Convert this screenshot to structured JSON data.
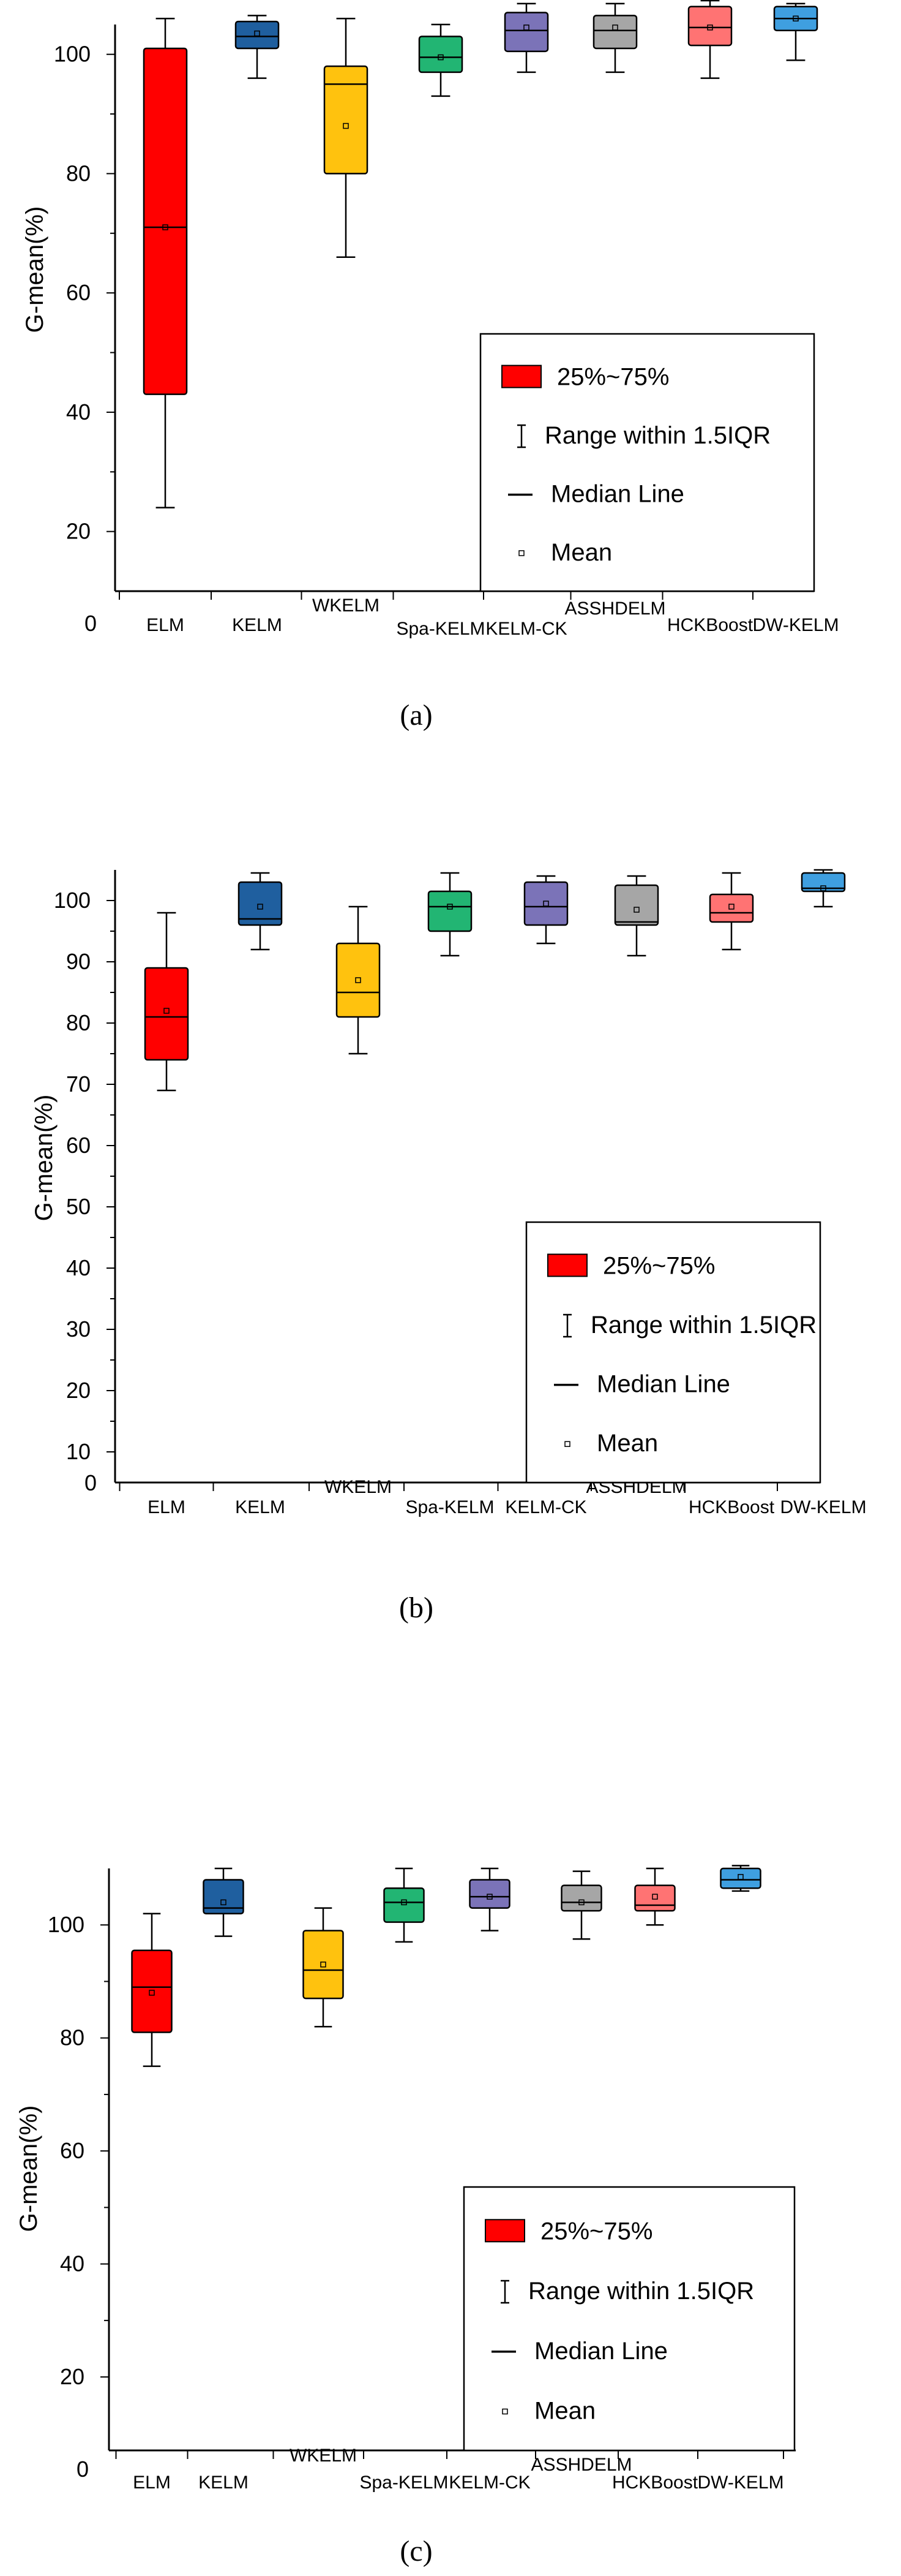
{
  "chart_data": [
    {
      "panel": "(a)",
      "type": "box",
      "ylabel": "G-mean(%)",
      "ylim": [
        10,
        105
      ],
      "yticks": [
        20,
        40,
        60,
        80,
        100
      ],
      "zero_label": "0",
      "categories": [
        "ELM",
        "KELM",
        "WKELM",
        "Spa-KELM",
        "KELM-CK",
        "ASSHDELM",
        "HCKBoost",
        "DW-KELM"
      ],
      "colors": [
        "#ff0000",
        "#1f5f9f",
        "#ffc20e",
        "#22b573",
        "#7b73b8",
        "#a6a6a6",
        "#ff7373",
        "#3f9fe0"
      ],
      "boxes": [
        {
          "min": 24,
          "q1": 43,
          "median": 71,
          "q3": 101,
          "max": 106,
          "mean": 71
        },
        {
          "min": 96,
          "q1": 101,
          "median": 103,
          "q3": 105.5,
          "max": 106.5,
          "mean": 103.5
        },
        {
          "min": 66,
          "q1": 80,
          "median": 95,
          "q3": 98,
          "max": 106,
          "mean": 88
        },
        {
          "min": 93,
          "q1": 97,
          "median": 99.5,
          "q3": 103,
          "max": 105,
          "mean": 99.5
        },
        {
          "min": 97,
          "q1": 100.5,
          "median": 104,
          "q3": 107,
          "max": 108.5,
          "mean": 104.5
        },
        {
          "min": 97,
          "q1": 101,
          "median": 104,
          "q3": 106.5,
          "max": 108.5,
          "mean": 104.5
        },
        {
          "min": 96,
          "q1": 101.5,
          "median": 104.5,
          "q3": 108,
          "max": 109,
          "mean": 104.5
        },
        {
          "min": 99,
          "q1": 104,
          "median": 106,
          "q3": 108,
          "max": 108.5,
          "mean": 106
        }
      ],
      "legend": {
        "box": "25%~75%",
        "range": "Range within 1.5IQR",
        "median": "Median Line",
        "mean": "Mean"
      }
    },
    {
      "panel": "(b)",
      "type": "box",
      "ylabel": "G-mean(%)",
      "ylim": [
        5,
        105
      ],
      "yticks": [
        10,
        20,
        30,
        40,
        50,
        60,
        70,
        80,
        90,
        100
      ],
      "zero_label": "0",
      "categories": [
        "ELM",
        "KELM",
        "WKELM",
        "Spa-KELM",
        "KELM-CK",
        "ASSHDELM",
        "HCKBoost",
        "DW-KELM"
      ],
      "colors": [
        "#ff0000",
        "#1f5f9f",
        "#ffc20e",
        "#22b573",
        "#7b73b8",
        "#a6a6a6",
        "#ff7373",
        "#3f9fe0"
      ],
      "boxes": [
        {
          "min": 69,
          "q1": 74,
          "median": 81,
          "q3": 89,
          "max": 98,
          "mean": 82
        },
        {
          "min": 92,
          "q1": 96,
          "median": 97,
          "q3": 103,
          "max": 104.5,
          "mean": 99
        },
        {
          "min": 75,
          "q1": 81,
          "median": 85,
          "q3": 93,
          "max": 99,
          "mean": 87
        },
        {
          "min": 91,
          "q1": 95,
          "median": 99,
          "q3": 101.5,
          "max": 104.5,
          "mean": 99
        },
        {
          "min": 93,
          "q1": 96,
          "median": 99,
          "q3": 103,
          "max": 104,
          "mean": 99.5
        },
        {
          "min": 91,
          "q1": 96,
          "median": 96.5,
          "q3": 102.5,
          "max": 104,
          "mean": 98.5
        },
        {
          "min": 92,
          "q1": 96.5,
          "median": 98,
          "q3": 101,
          "max": 104.5,
          "mean": 99
        },
        {
          "min": 99,
          "q1": 101.5,
          "median": 102,
          "q3": 104.5,
          "max": 105,
          "mean": 102
        }
      ],
      "legend": {
        "box": "25%~75%",
        "range": "Range within 1.5IQR",
        "median": "Median Line",
        "mean": "Mean"
      }
    },
    {
      "panel": "(c)",
      "type": "box",
      "ylabel": "G-mean(%)",
      "ylim": [
        7,
        110
      ],
      "yticks": [
        20,
        40,
        60,
        80,
        100
      ],
      "zero_label": "0",
      "categories": [
        "ELM",
        "KELM",
        "WKELM",
        "Spa-KELM",
        "KELM-CK",
        "ASSHDELM",
        "HCKBoost",
        "DW-KELM"
      ],
      "colors": [
        "#ff0000",
        "#1f5f9f",
        "#ffc20e",
        "#22b573",
        "#7b73b8",
        "#a6a6a6",
        "#ff7373",
        "#3f9fe0"
      ],
      "boxes": [
        {
          "min": 75,
          "q1": 81,
          "median": 89,
          "q3": 95.5,
          "max": 102,
          "mean": 88
        },
        {
          "min": 98,
          "q1": 102,
          "median": 103,
          "q3": 108,
          "max": 110,
          "mean": 104
        },
        {
          "min": 82,
          "q1": 87,
          "median": 92,
          "q3": 99,
          "max": 103,
          "mean": 93
        },
        {
          "min": 97,
          "q1": 100.5,
          "median": 104,
          "q3": 106.5,
          "max": 110,
          "mean": 104
        },
        {
          "min": 99,
          "q1": 103,
          "median": 105,
          "q3": 108,
          "max": 110,
          "mean": 105
        },
        {
          "min": 97.5,
          "q1": 102.5,
          "median": 104,
          "q3": 107,
          "max": 109.5,
          "mean": 104
        },
        {
          "min": 100,
          "q1": 102.5,
          "median": 103.5,
          "q3": 107,
          "max": 110,
          "mean": 105
        },
        {
          "min": 106,
          "q1": 106.5,
          "median": 108,
          "q3": 110,
          "max": 110.5,
          "mean": 108.5
        }
      ],
      "legend": {
        "box": "25%~75%",
        "range": "Range within 1.5IQR",
        "median": "Median Line",
        "mean": "Mean"
      }
    }
  ]
}
